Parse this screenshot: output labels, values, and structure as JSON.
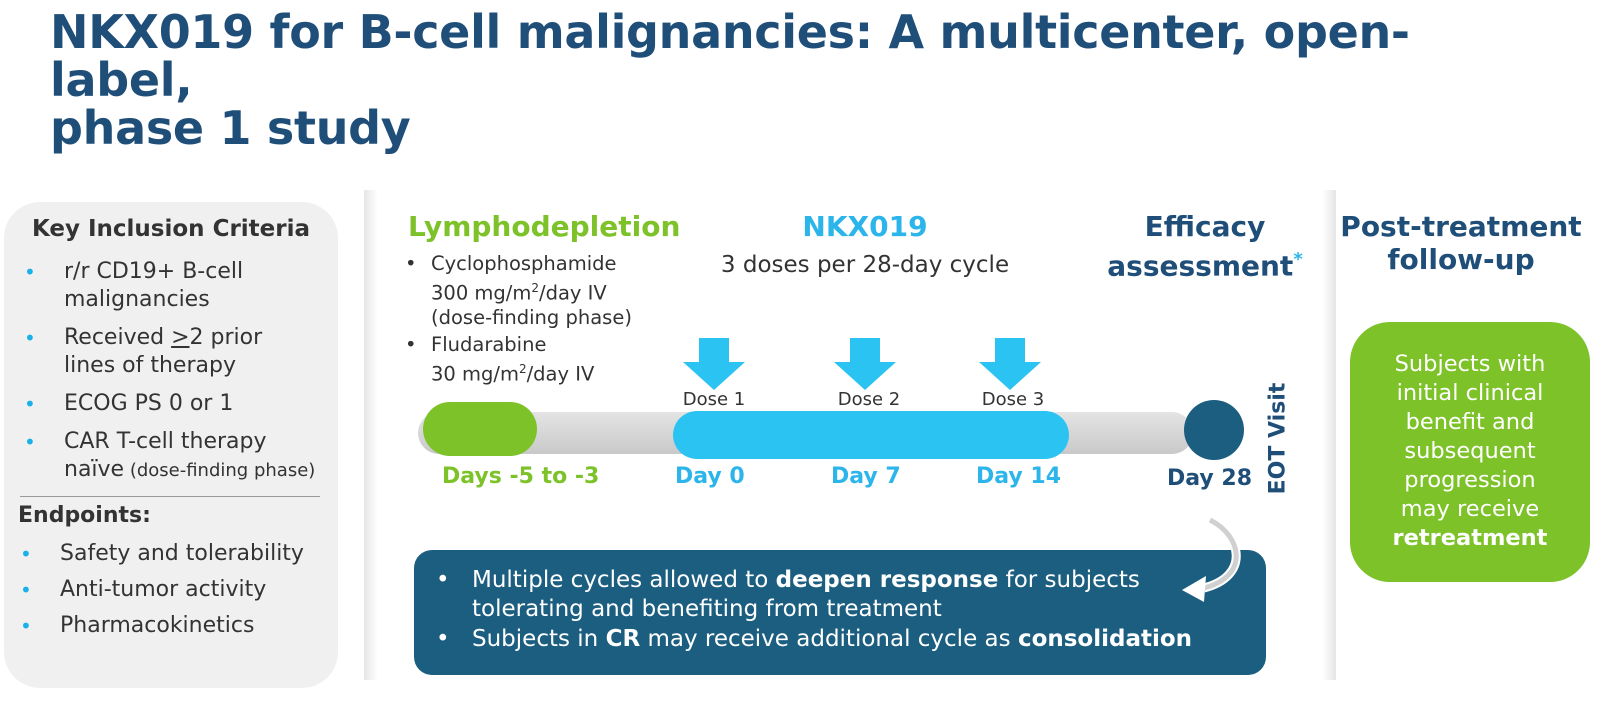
{
  "title": {
    "line1": "NKX019 for B-cell malignancies: A multicenter, open-label,",
    "line2": "phase 1 study"
  },
  "inclusion": {
    "title": "Key Inclusion Criteria",
    "items": [
      {
        "l1": "r/r CD19+ B-cell",
        "l2": "malignancies"
      },
      {
        "l1a": "Received ",
        "l1u": ">",
        "l1b": "2 prior",
        "l2": "lines of therapy"
      },
      {
        "l1": "ECOG PS 0 or 1"
      },
      {
        "l1": "CAR T-cell therapy",
        "l2": "naïve",
        "l2small": " (dose-finding phase)"
      }
    ]
  },
  "endpoints": {
    "title": "Endpoints:",
    "items": [
      "Safety and tolerability",
      "Anti-tumor activity",
      "Pharmacokinetics"
    ]
  },
  "lymphodepletion": {
    "title": "Lymphodepletion",
    "drug1": {
      "name": "Cyclophosphamide",
      "dose_pre": "300 mg/m",
      "sup": "2",
      "dose_post": "/day IV",
      "note": "(dose-finding phase)"
    },
    "drug2": {
      "name": "Fludarabine",
      "dose_pre": "30 mg/m",
      "sup": "2",
      "dose_post": "/day IV"
    }
  },
  "nkx": {
    "title": "NKX019",
    "subtitle": "3 doses per 28-day cycle"
  },
  "efficacy": {
    "line1": "Efficacy",
    "line2": "assessment",
    "mark": "*"
  },
  "post_treatment": {
    "line1": "Post-treatment",
    "line2": "follow-up"
  },
  "doses": [
    "Dose 1",
    "Dose 2",
    "Dose 3"
  ],
  "days": {
    "lympho": "Days -5 to -3",
    "d0": "Day 0",
    "d7": "Day 7",
    "d14": "Day 14",
    "d28": "Day 28"
  },
  "eot": "EOT Visit",
  "retreatment": {
    "lines": [
      "Subjects with",
      "initial clinical",
      "benefit and",
      "subsequent",
      "progression",
      "may receive"
    ],
    "bold": "retreatment"
  },
  "info": {
    "line1a": "Multiple cycles allowed to ",
    "line1b": "deepen response",
    "line1c": " for subjects",
    "line1d": "tolerating and benefiting from treatment",
    "line2a": "Subjects in ",
    "line2b": "CR",
    "line2c": " may receive additional cycle as ",
    "line2d": "consolidation"
  },
  "colors": {
    "navy": "#1f4e79",
    "green": "#7cc228",
    "cyan": "#2bc3f2",
    "dark_teal": "#1b5e80",
    "panel_grey": "#f0f0f0"
  }
}
